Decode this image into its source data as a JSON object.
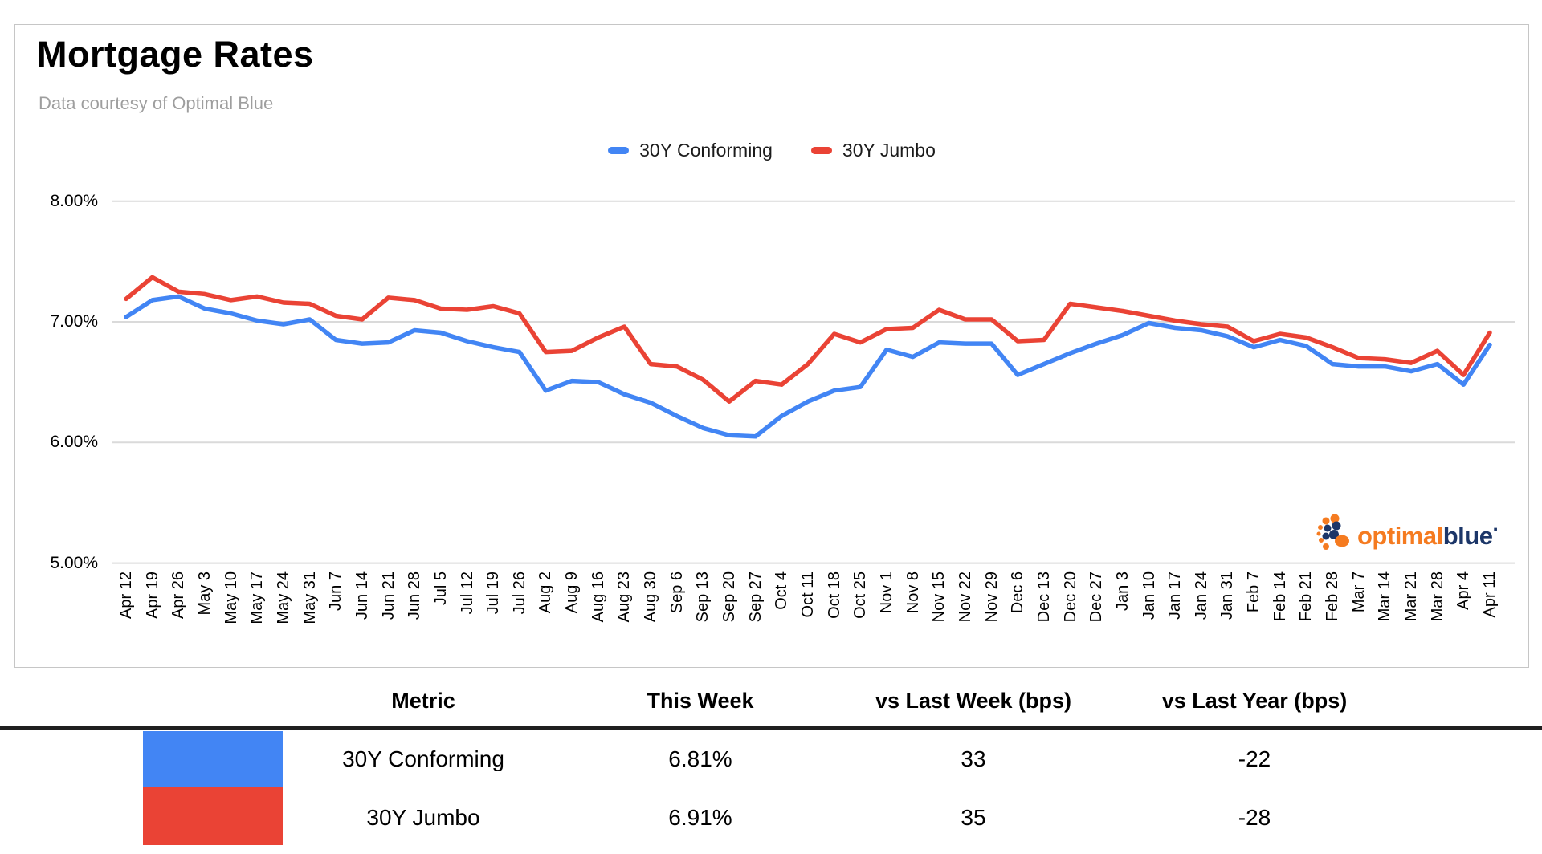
{
  "header": {
    "title": "Mortgage Rates",
    "subtitle": "Data courtesy of Optimal Blue"
  },
  "legend": [
    {
      "label": "30Y Conforming",
      "color": "#4285f4"
    },
    {
      "label": "30Y Jumbo",
      "color": "#ea4335"
    }
  ],
  "logo": {
    "text_primary": "optimal",
    "text_secondary": "blue",
    "trademark": "·",
    "orange": "#f57b20",
    "navy": "#1c3668"
  },
  "chart_data": {
    "type": "line",
    "title": "Mortgage Rates",
    "subtitle": "Data courtesy of Optimal Blue",
    "xlabel": "",
    "ylabel": "",
    "ylim": [
      5.0,
      8.0
    ],
    "grid": true,
    "legend_position": "top",
    "y_ticks": [
      {
        "label": "8.00%",
        "value": 8.0
      },
      {
        "label": "7.00%",
        "value": 7.0
      },
      {
        "label": "6.00%",
        "value": 6.0
      },
      {
        "label": "5.00%",
        "value": 5.0
      }
    ],
    "x": [
      "Apr 12",
      "Apr 19",
      "Apr 26",
      "May 3",
      "May 10",
      "May 17",
      "May 24",
      "May 31",
      "Jun 7",
      "Jun 14",
      "Jun 21",
      "Jun 28",
      "Jul 5",
      "Jul 12",
      "Jul 19",
      "Jul 26",
      "Aug 2",
      "Aug 9",
      "Aug 16",
      "Aug 23",
      "Aug 30",
      "Sep 6",
      "Sep 13",
      "Sep 20",
      "Sep 27",
      "Oct 4",
      "Oct 11",
      "Oct 18",
      "Oct 25",
      "Nov 1",
      "Nov 8",
      "Nov 15",
      "Nov 22",
      "Nov 29",
      "Dec 6",
      "Dec 13",
      "Dec 20",
      "Dec 27",
      "Jan 3",
      "Jan 10",
      "Jan 17",
      "Jan 24",
      "Jan 31",
      "Feb 7",
      "Feb 14",
      "Feb 21",
      "Feb 28",
      "Mar 7",
      "Mar 14",
      "Mar 21",
      "Mar 28",
      "Apr 4",
      "Apr 11"
    ],
    "series": [
      {
        "name": "30Y Conforming",
        "color": "#4285f4",
        "values": [
          7.04,
          7.18,
          7.21,
          7.11,
          7.07,
          7.01,
          6.98,
          7.02,
          6.85,
          6.82,
          6.83,
          6.93,
          6.91,
          6.84,
          6.79,
          6.75,
          6.43,
          6.51,
          6.5,
          6.4,
          6.33,
          6.22,
          6.12,
          6.06,
          6.05,
          6.22,
          6.34,
          6.43,
          6.46,
          6.77,
          6.71,
          6.83,
          6.82,
          6.82,
          6.56,
          6.65,
          6.74,
          6.82,
          6.89,
          6.99,
          6.95,
          6.93,
          6.88,
          6.79,
          6.85,
          6.8,
          6.65,
          6.63,
          6.63,
          6.59,
          6.65,
          6.48,
          6.81
        ]
      },
      {
        "name": "30Y Jumbo",
        "color": "#ea4335",
        "values": [
          7.19,
          7.37,
          7.25,
          7.23,
          7.18,
          7.21,
          7.16,
          7.15,
          7.05,
          7.02,
          7.2,
          7.18,
          7.11,
          7.1,
          7.13,
          7.07,
          6.75,
          6.76,
          6.87,
          6.96,
          6.65,
          6.63,
          6.52,
          6.34,
          6.51,
          6.48,
          6.65,
          6.9,
          6.83,
          6.94,
          6.95,
          7.1,
          7.02,
          7.02,
          6.84,
          6.85,
          7.15,
          7.12,
          7.09,
          7.05,
          7.01,
          6.98,
          6.96,
          6.84,
          6.9,
          6.87,
          6.79,
          6.7,
          6.69,
          6.66,
          6.76,
          6.56,
          6.91
        ]
      }
    ]
  },
  "table": {
    "headers": [
      "Metric",
      "This Week",
      "vs Last Week (bps)",
      "vs Last Year (bps)"
    ],
    "rows": [
      {
        "swatch": "#4285f4",
        "metric": "30Y Conforming",
        "this_week": "6.81%",
        "vs_last_week": "33",
        "vs_last_year": "-22"
      },
      {
        "swatch": "#ea4335",
        "metric": "30Y Jumbo",
        "this_week": "6.91%",
        "vs_last_week": "35",
        "vs_last_year": "-28"
      }
    ]
  }
}
